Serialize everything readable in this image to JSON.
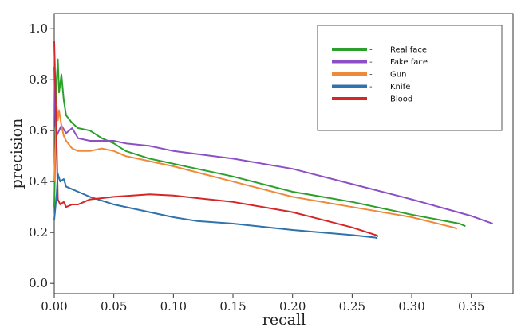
{
  "chart_data": {
    "type": "line",
    "title": "",
    "xlabel": "recall",
    "ylabel": "precision",
    "xlim": [
      0,
      0.385
    ],
    "ylim": [
      -0.04,
      1.06
    ],
    "xticks": [
      "0.00",
      "0.05",
      "0.10",
      "0.15",
      "0.20",
      "0.25",
      "0.30",
      "0.35"
    ],
    "yticks": [
      "0.0",
      "0.2",
      "0.4",
      "0.6",
      "0.8",
      "1.0"
    ],
    "legend_position": "top-right",
    "series": [
      {
        "name": "Real face",
        "color": "#2ca02c",
        "x": [
          0.0,
          0.002,
          0.003,
          0.004,
          0.006,
          0.008,
          0.01,
          0.015,
          0.02,
          0.03,
          0.04,
          0.05,
          0.06,
          0.08,
          0.1,
          0.15,
          0.2,
          0.25,
          0.3,
          0.34,
          0.345
        ],
        "y": [
          0.3,
          0.8,
          0.88,
          0.75,
          0.82,
          0.72,
          0.66,
          0.63,
          0.61,
          0.6,
          0.57,
          0.55,
          0.52,
          0.49,
          0.47,
          0.42,
          0.36,
          0.32,
          0.27,
          0.235,
          0.225
        ]
      },
      {
        "name": "Fake face",
        "color": "#8c4fc5",
        "x": [
          0.0,
          0.001,
          0.002,
          0.004,
          0.006,
          0.01,
          0.015,
          0.02,
          0.03,
          0.04,
          0.05,
          0.06,
          0.08,
          0.1,
          0.15,
          0.2,
          0.25,
          0.3,
          0.35,
          0.365,
          0.368
        ],
        "y": [
          0.85,
          0.62,
          0.58,
          0.6,
          0.62,
          0.59,
          0.61,
          0.57,
          0.56,
          0.56,
          0.56,
          0.55,
          0.54,
          0.52,
          0.49,
          0.45,
          0.39,
          0.33,
          0.265,
          0.24,
          0.235
        ]
      },
      {
        "name": "Gun",
        "color": "#ee8a3c",
        "x": [
          0.0,
          0.002,
          0.003,
          0.004,
          0.006,
          0.008,
          0.01,
          0.015,
          0.02,
          0.03,
          0.04,
          0.05,
          0.06,
          0.08,
          0.1,
          0.15,
          0.2,
          0.25,
          0.3,
          0.335,
          0.338
        ],
        "y": [
          0.4,
          0.7,
          0.64,
          0.68,
          0.62,
          0.58,
          0.56,
          0.53,
          0.52,
          0.52,
          0.53,
          0.52,
          0.5,
          0.48,
          0.46,
          0.4,
          0.34,
          0.3,
          0.26,
          0.22,
          0.215
        ]
      },
      {
        "name": "Knife",
        "color": "#2f72ae",
        "x": [
          0.0,
          0.002,
          0.003,
          0.005,
          0.008,
          0.01,
          0.015,
          0.02,
          0.03,
          0.05,
          0.08,
          0.1,
          0.12,
          0.15,
          0.2,
          0.25,
          0.27,
          0.271
        ],
        "y": [
          0.25,
          0.35,
          0.43,
          0.4,
          0.41,
          0.38,
          0.37,
          0.36,
          0.34,
          0.31,
          0.28,
          0.26,
          0.245,
          0.235,
          0.21,
          0.19,
          0.18,
          0.175
        ]
      },
      {
        "name": "Blood",
        "color": "#d62728",
        "x": [
          0.0,
          0.002,
          0.003,
          0.005,
          0.008,
          0.01,
          0.015,
          0.02,
          0.03,
          0.05,
          0.08,
          0.1,
          0.15,
          0.2,
          0.25,
          0.27,
          0.272
        ],
        "y": [
          0.95,
          0.55,
          0.33,
          0.31,
          0.32,
          0.3,
          0.31,
          0.31,
          0.33,
          0.34,
          0.35,
          0.345,
          0.32,
          0.28,
          0.22,
          0.19,
          0.185
        ]
      }
    ]
  }
}
